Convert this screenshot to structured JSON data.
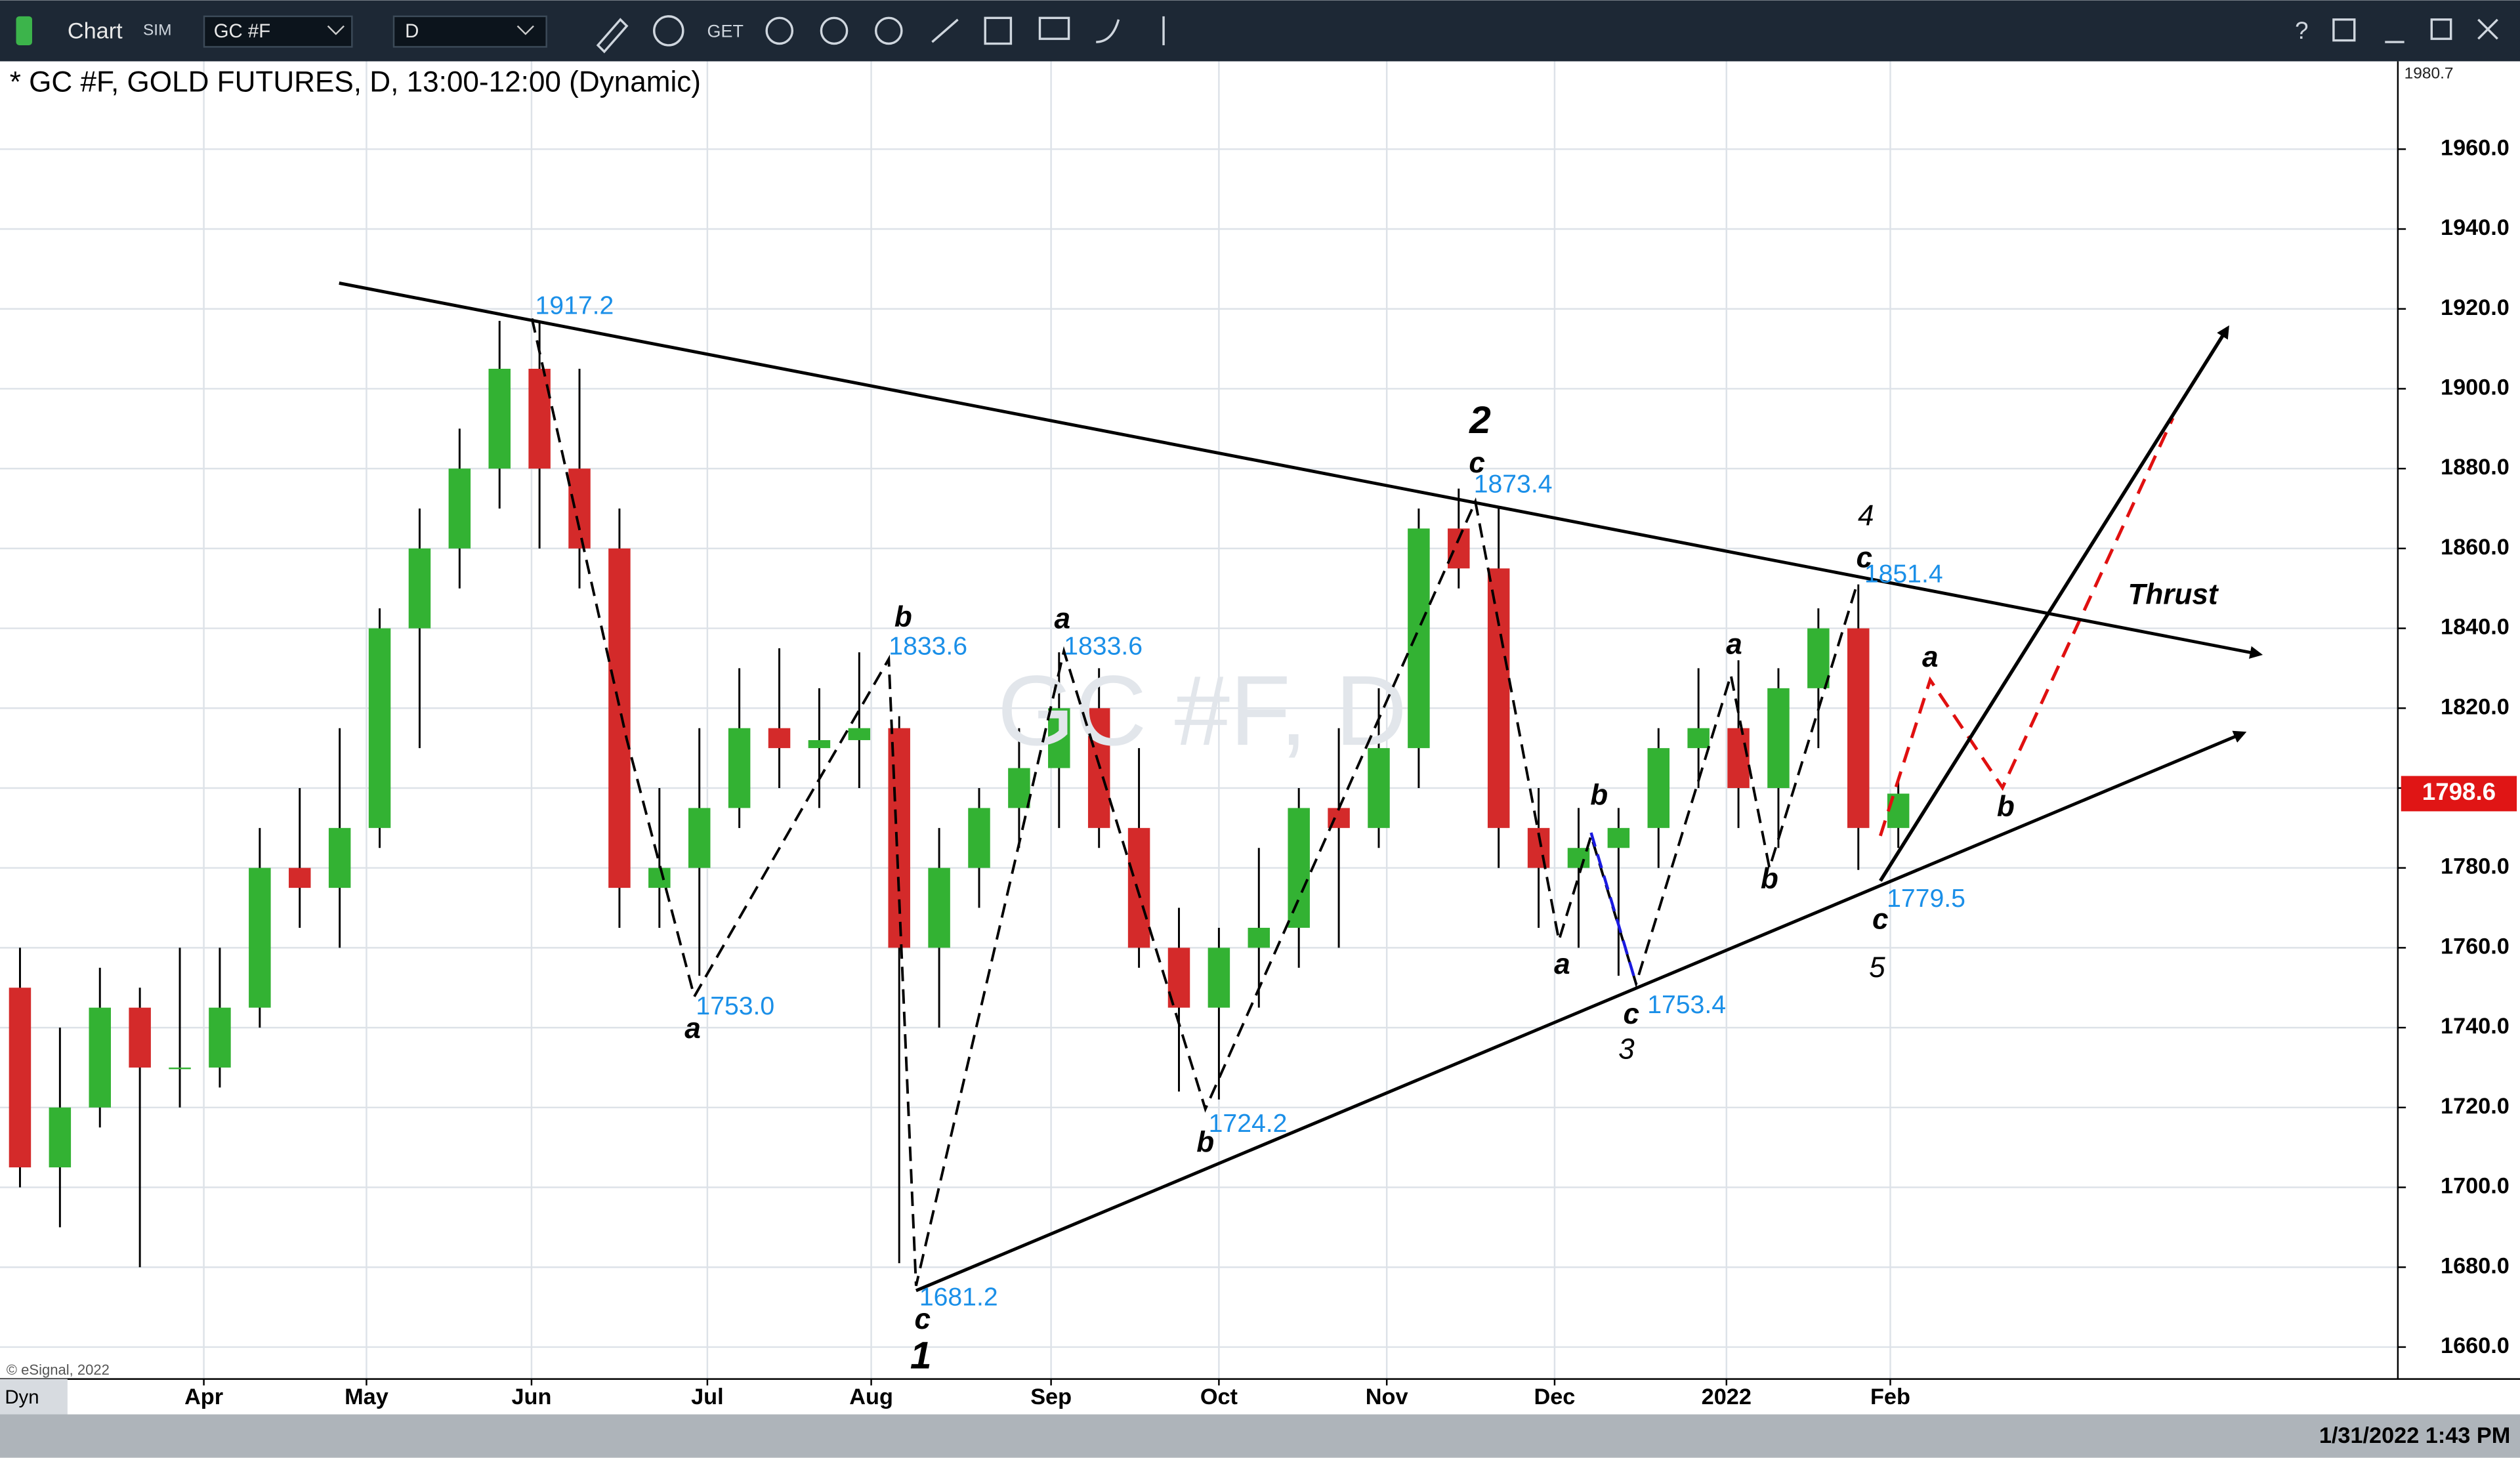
{
  "toolbar": {
    "app": "Chart",
    "mode": "SIM",
    "symbol": "GC #F",
    "interval": "D",
    "get": "GET"
  },
  "watermark": "GC #F, D",
  "copyright": "© eSignal, 2022",
  "corner": "Dyn",
  "status": "1/31/2022 1:43 PM",
  "axis_top_label": "1980.7",
  "chart_data": {
    "type": "candlestick",
    "title": "* GC #F, GOLD FUTURES, D, 13:00-12:00 (Dynamic)",
    "up_color": "#33b233",
    "down_color": "#d42a2a",
    "grid": true,
    "xlim": [
      0,
      60
    ],
    "xticks": [
      {
        "value": 5.1,
        "label": "Apr"
      },
      {
        "value": 9.17,
        "label": "May"
      },
      {
        "value": 13.3,
        "label": "Jun"
      },
      {
        "value": 17.7,
        "label": "Jul"
      },
      {
        "value": 21.8,
        "label": "Aug"
      },
      {
        "value": 26.3,
        "label": "Sep"
      },
      {
        "value": 30.5,
        "label": "Oct"
      },
      {
        "value": 34.7,
        "label": "Nov"
      },
      {
        "value": 38.9,
        "label": "Dec"
      },
      {
        "value": 43.2,
        "label": "2022"
      },
      {
        "value": 47.3,
        "label": "Feb"
      }
    ],
    "ylim": [
      1652,
      1982
    ],
    "yticks": [
      {
        "value": 1660,
        "label": "1660.0"
      },
      {
        "value": 1680,
        "label": "1680.0"
      },
      {
        "value": 1700,
        "label": "1700.0"
      },
      {
        "value": 1720,
        "label": "1720.0"
      },
      {
        "value": 1740,
        "label": "1740.0"
      },
      {
        "value": 1760,
        "label": "1760.0"
      },
      {
        "value": 1780,
        "label": "1780.0"
      },
      {
        "value": 1800,
        "label": "1800.0"
      },
      {
        "value": 1820,
        "label": "1820.0"
      },
      {
        "value": 1840,
        "label": "1840.0"
      },
      {
        "value": 1860,
        "label": "1860.0"
      },
      {
        "value": 1880,
        "label": "1880.0"
      },
      {
        "value": 1900,
        "label": "1900.0"
      },
      {
        "value": 1920,
        "label": "1920.0"
      },
      {
        "value": 1940,
        "label": "1940.0"
      },
      {
        "value": 1960,
        "label": "1960.0"
      }
    ],
    "ohlc": [
      [
        1750,
        1760,
        1700,
        1705
      ],
      [
        1705,
        1740,
        1690,
        1720
      ],
      [
        1720,
        1755,
        1715,
        1745
      ],
      [
        1745,
        1750,
        1680,
        1730
      ],
      [
        1730,
        1760,
        1720,
        1730
      ],
      [
        1730,
        1760,
        1725,
        1745
      ],
      [
        1745,
        1790,
        1740,
        1780
      ],
      [
        1780,
        1800,
        1765,
        1775
      ],
      [
        1775,
        1815,
        1760,
        1790
      ],
      [
        1790,
        1845,
        1785,
        1840
      ],
      [
        1840,
        1870,
        1810,
        1860
      ],
      [
        1860,
        1890,
        1850,
        1880
      ],
      [
        1880,
        1917,
        1870,
        1905
      ],
      [
        1905,
        1917,
        1860,
        1880
      ],
      [
        1880,
        1905,
        1850,
        1860
      ],
      [
        1860,
        1870,
        1765,
        1775
      ],
      [
        1775,
        1800,
        1765,
        1780
      ],
      [
        1780,
        1815,
        1753,
        1795
      ],
      [
        1795,
        1830,
        1790,
        1815
      ],
      [
        1815,
        1835,
        1800,
        1810
      ],
      [
        1810,
        1825,
        1795,
        1812
      ],
      [
        1812,
        1834,
        1800,
        1815
      ],
      [
        1815,
        1818,
        1681,
        1760
      ],
      [
        1760,
        1790,
        1740,
        1780
      ],
      [
        1780,
        1800,
        1770,
        1795
      ],
      [
        1795,
        1815,
        1785,
        1805
      ],
      [
        1805,
        1834,
        1790,
        1820
      ],
      [
        1820,
        1830,
        1785,
        1790
      ],
      [
        1790,
        1810,
        1755,
        1760
      ],
      [
        1760,
        1770,
        1724,
        1745
      ],
      [
        1745,
        1765,
        1722,
        1760
      ],
      [
        1760,
        1785,
        1745,
        1765
      ],
      [
        1765,
        1800,
        1755,
        1795
      ],
      [
        1795,
        1815,
        1760,
        1790
      ],
      [
        1790,
        1825,
        1785,
        1810
      ],
      [
        1810,
        1870,
        1800,
        1865
      ],
      [
        1865,
        1875,
        1850,
        1855
      ],
      [
        1855,
        1870,
        1780,
        1790
      ],
      [
        1790,
        1800,
        1765,
        1780
      ],
      [
        1780,
        1795,
        1760,
        1785
      ],
      [
        1785,
        1795,
        1753,
        1790
      ],
      [
        1790,
        1815,
        1780,
        1810
      ],
      [
        1810,
        1830,
        1800,
        1815
      ],
      [
        1815,
        1832,
        1790,
        1800
      ],
      [
        1800,
        1830,
        1785,
        1825
      ],
      [
        1825,
        1845,
        1810,
        1840
      ],
      [
        1840,
        1851,
        1779.5,
        1790
      ],
      [
        1790,
        1802,
        1785,
        1798.6
      ]
    ],
    "last_price": 1798.6,
    "annotations": [
      "1917.2",
      "1753.0",
      "1681.2",
      "1833.6",
      "1833.6",
      "1724.2",
      "1873.4",
      "1753.4",
      "1851.4",
      "1779.5",
      "a",
      "b",
      "c",
      "1",
      "a",
      "b",
      "c",
      "2",
      "a",
      "b",
      "c",
      "3",
      "a",
      "b",
      "4",
      "c",
      "c",
      "5",
      "a",
      "b",
      "Thrust"
    ]
  }
}
